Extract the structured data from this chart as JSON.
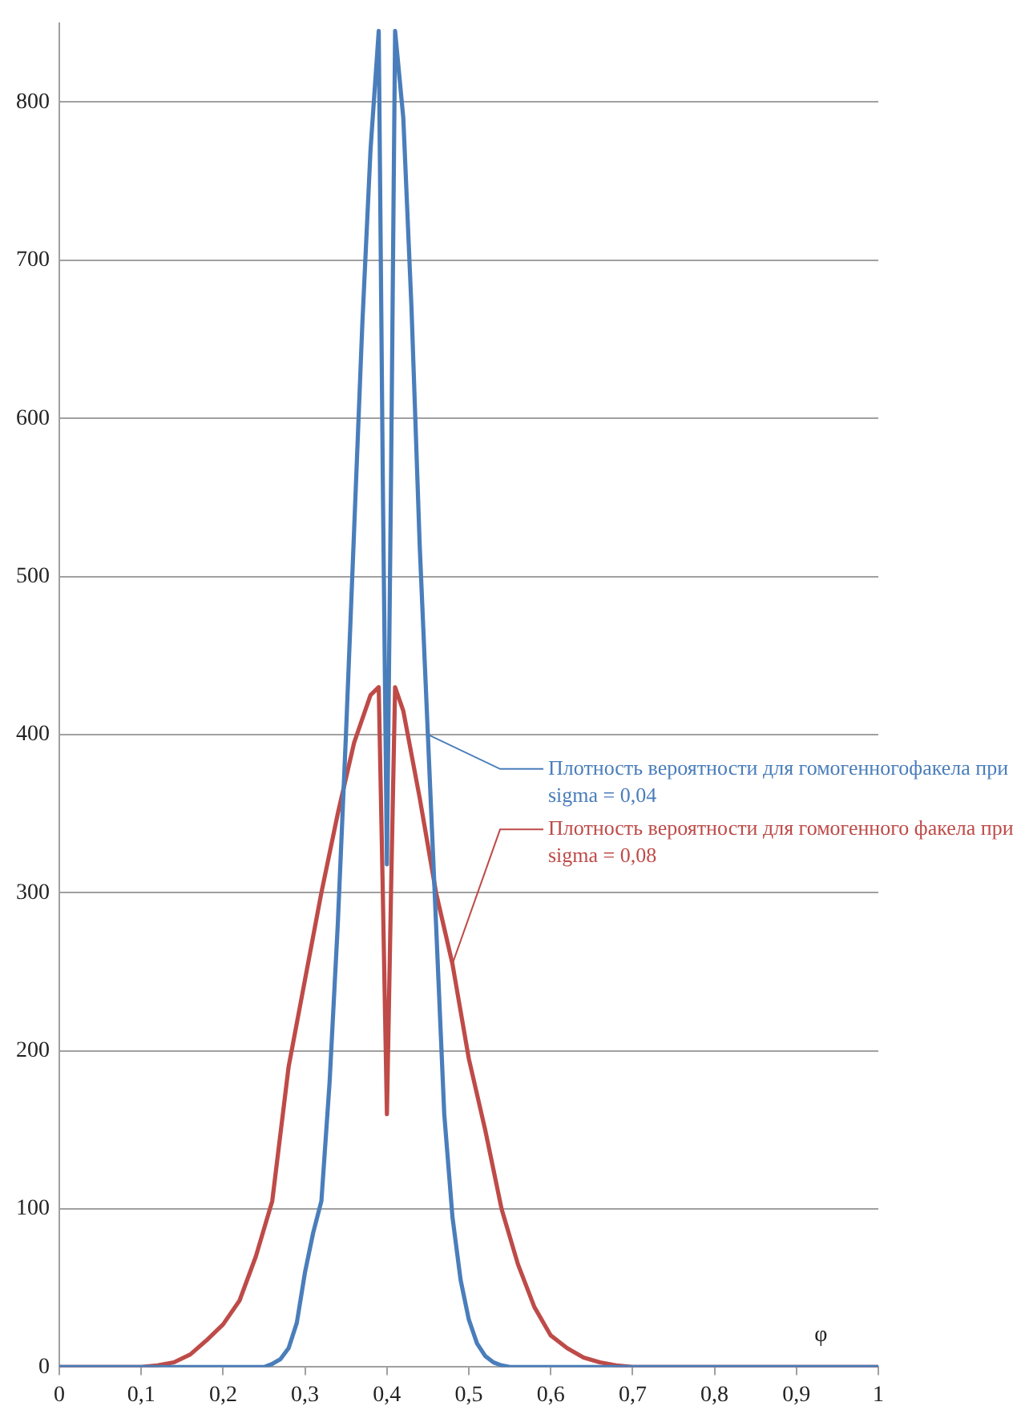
{
  "chart_data": {
    "type": "line",
    "xlabel": "φ",
    "xlim": [
      0,
      1
    ],
    "xticks": [
      0,
      {
        "value": 0.1,
        "label": "0,1"
      },
      {
        "value": 0.2,
        "label": "0,2"
      },
      {
        "value": 0.3,
        "label": "0,3"
      },
      {
        "value": 0.4,
        "label": "0,4"
      },
      {
        "value": 0.5,
        "label": "0,5"
      },
      {
        "value": 0.6,
        "label": "0,6"
      },
      {
        "value": 0.7,
        "label": "0,7"
      },
      {
        "value": 0.8,
        "label": "0,8"
      },
      {
        "value": 0.9,
        "label": "0,9"
      },
      1
    ],
    "ylim": [
      0,
      850
    ],
    "yticks": [
      0,
      100,
      200,
      300,
      400,
      500,
      600,
      700,
      800
    ],
    "grid": "y",
    "legend": false,
    "marker": "none",
    "line_style": "solid",
    "series": [
      {
        "name": "Плотность вероятности для гомогенногофакела при sigma = 0,04",
        "color": "#4a7ebb",
        "x": [
          0,
          0.25,
          0.26,
          0.27,
          0.28,
          0.29,
          0.3,
          0.31,
          0.32,
          0.33,
          0.34,
          0.35,
          0.36,
          0.37,
          0.38,
          0.39,
          0.395,
          0.4,
          0.405,
          0.41,
          0.42,
          0.43,
          0.44,
          0.45,
          0.46,
          0.47,
          0.48,
          0.49,
          0.5,
          0.51,
          0.52,
          0.53,
          0.54,
          0.55,
          1
        ],
        "values": [
          0,
          0,
          2,
          5,
          12,
          28,
          60,
          85,
          105,
          180,
          280,
          400,
          530,
          660,
          770,
          845,
          560,
          318,
          560,
          845,
          790,
          670,
          520,
          400,
          280,
          160,
          95,
          55,
          30,
          15,
          7,
          3,
          1,
          0,
          0
        ]
      },
      {
        "name": "Плотность вероятности для гомогенного факела при sigma = 0,08",
        "color": "#be4b48",
        "x": [
          0,
          0.1,
          0.12,
          0.14,
          0.16,
          0.18,
          0.2,
          0.22,
          0.24,
          0.26,
          0.28,
          0.3,
          0.32,
          0.34,
          0.36,
          0.38,
          0.39,
          0.395,
          0.4,
          0.405,
          0.41,
          0.42,
          0.44,
          0.46,
          0.48,
          0.5,
          0.52,
          0.54,
          0.56,
          0.58,
          0.6,
          0.62,
          0.64,
          0.66,
          0.68,
          0.7,
          1
        ],
        "values": [
          0,
          0,
          1,
          3,
          8,
          17,
          27,
          42,
          70,
          105,
          190,
          245,
          300,
          350,
          395,
          425,
          430,
          300,
          160,
          300,
          430,
          415,
          360,
          300,
          255,
          195,
          150,
          100,
          65,
          38,
          20,
          12,
          6,
          3,
          1,
          0,
          0
        ]
      }
    ]
  }
}
